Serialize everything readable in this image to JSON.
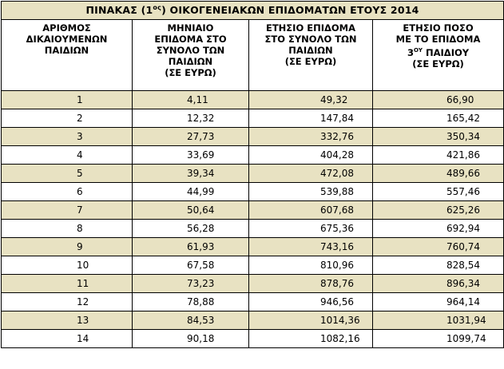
{
  "title": {
    "before": "ΠΙΝΑΚΑΣ (1",
    "sup": "ος",
    "after": ") ΟΙΚΟΓΕΝΕΙΑΚΩΝ ΕΠΙΔΟΜΑΤΩΝ ΕΤΟΥΣ 2014"
  },
  "headers": {
    "col1": [
      "ΑΡΙΘΜΟΣ",
      "ΔΙΚΑΙΟΥΜΕΝΩΝ",
      "ΠΑΙΔΙΩΝ"
    ],
    "col2": [
      "ΜΗΝΙΑΙΟ",
      "ΕΠΙΔΟΜΑ ΣΤΟ",
      "ΣΥΝΟΛΟ ΤΩΝ",
      "ΠΑΙΔΙΩΝ",
      "(ΣΕ ΕΥΡΩ)"
    ],
    "col3": [
      "ΕΤΗΣΙΟ ΕΠΙΔΟΜΑ",
      "ΣΤΟ ΣΥΝΟΛΟ ΤΩΝ",
      "ΠΑΙΔΙΩΝ",
      "(ΣΕ ΕΥΡΩ)"
    ],
    "col4": {
      "line1": "ΕΤΗΣΙΟ ΠΟΣΟ",
      "line2": "ΜΕ ΤΟ ΕΠΙΔΟΜΑ",
      "line3_num": "3",
      "line3_sup": "ΟΥ",
      "line3_rest": " ΠΑΙΔΙΟΥ",
      "line4": "(ΣΕ ΕΥΡΩ)"
    }
  },
  "rows": [
    [
      "1",
      "4,11",
      "49,32",
      "66,90"
    ],
    [
      "2",
      "12,32",
      "147,84",
      "165,42"
    ],
    [
      "3",
      "27,73",
      "332,76",
      "350,34"
    ],
    [
      "4",
      "33,69",
      "404,28",
      "421,86"
    ],
    [
      "5",
      "39,34",
      "472,08",
      "489,66"
    ],
    [
      "6",
      "44,99",
      "539,88",
      "557,46"
    ],
    [
      "7",
      "50,64",
      "607,68",
      "625,26"
    ],
    [
      "8",
      "56,28",
      "675,36",
      "692,94"
    ],
    [
      "9",
      "61,93",
      "743,16",
      "760,74"
    ],
    [
      "10",
      "67,58",
      "810,96",
      "828,54"
    ],
    [
      "11",
      "73,23",
      "878,76",
      "896,34"
    ],
    [
      "12",
      "78,88",
      "946,56",
      "964,14"
    ],
    [
      "13",
      "84,53",
      "1014,36",
      "1031,94"
    ],
    [
      "14",
      "90,18",
      "1082,16",
      "1099,74"
    ]
  ],
  "colors": {
    "shade": "#e8e2c2",
    "border": "#000000"
  }
}
